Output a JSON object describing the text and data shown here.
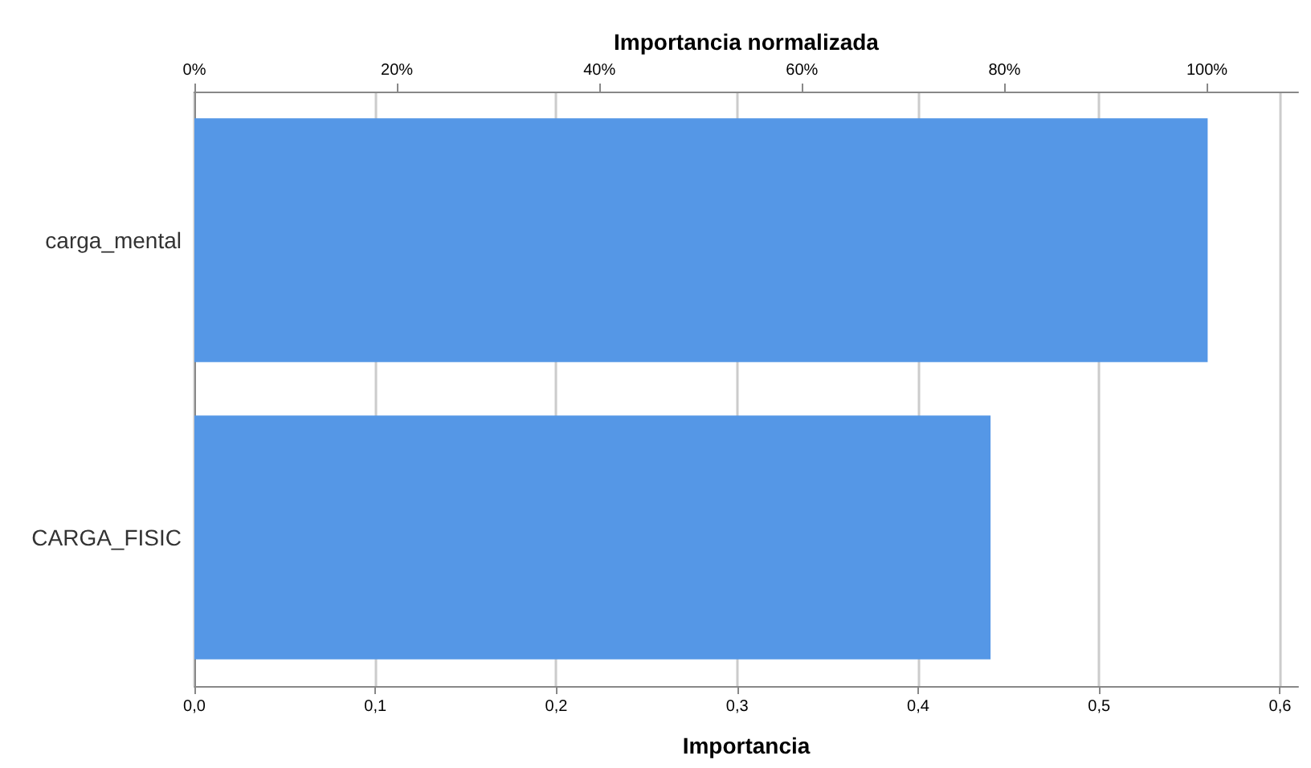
{
  "chart_data": {
    "type": "bar",
    "orientation": "horizontal",
    "xlabel": "Importancia",
    "x2label": "Importancia normalizada",
    "categories": [
      "carga_mental",
      "CARGA_FISIC"
    ],
    "values": [
      0.56,
      0.44
    ],
    "color": "#5597e6",
    "xlim": [
      0,
      0.61
    ],
    "xticks": [
      {
        "value": 0,
        "label": "0,0"
      },
      {
        "value": 0.1,
        "label": "0,1"
      },
      {
        "value": 0.2,
        "label": "0,2"
      },
      {
        "value": 0.3,
        "label": "0,3"
      },
      {
        "value": 0.4,
        "label": "0,4"
      },
      {
        "value": 0.5,
        "label": "0,5"
      },
      {
        "value": 0.6,
        "label": "0,6"
      }
    ],
    "x2lim": [
      0,
      109
    ],
    "x2ticks": [
      {
        "value": 0,
        "label": "0%"
      },
      {
        "value": 20,
        "label": "20%"
      },
      {
        "value": 40,
        "label": "40%"
      },
      {
        "value": 60,
        "label": "60%"
      },
      {
        "value": 80,
        "label": "80%"
      },
      {
        "value": 100,
        "label": "100%"
      }
    ],
    "grid": "x"
  }
}
